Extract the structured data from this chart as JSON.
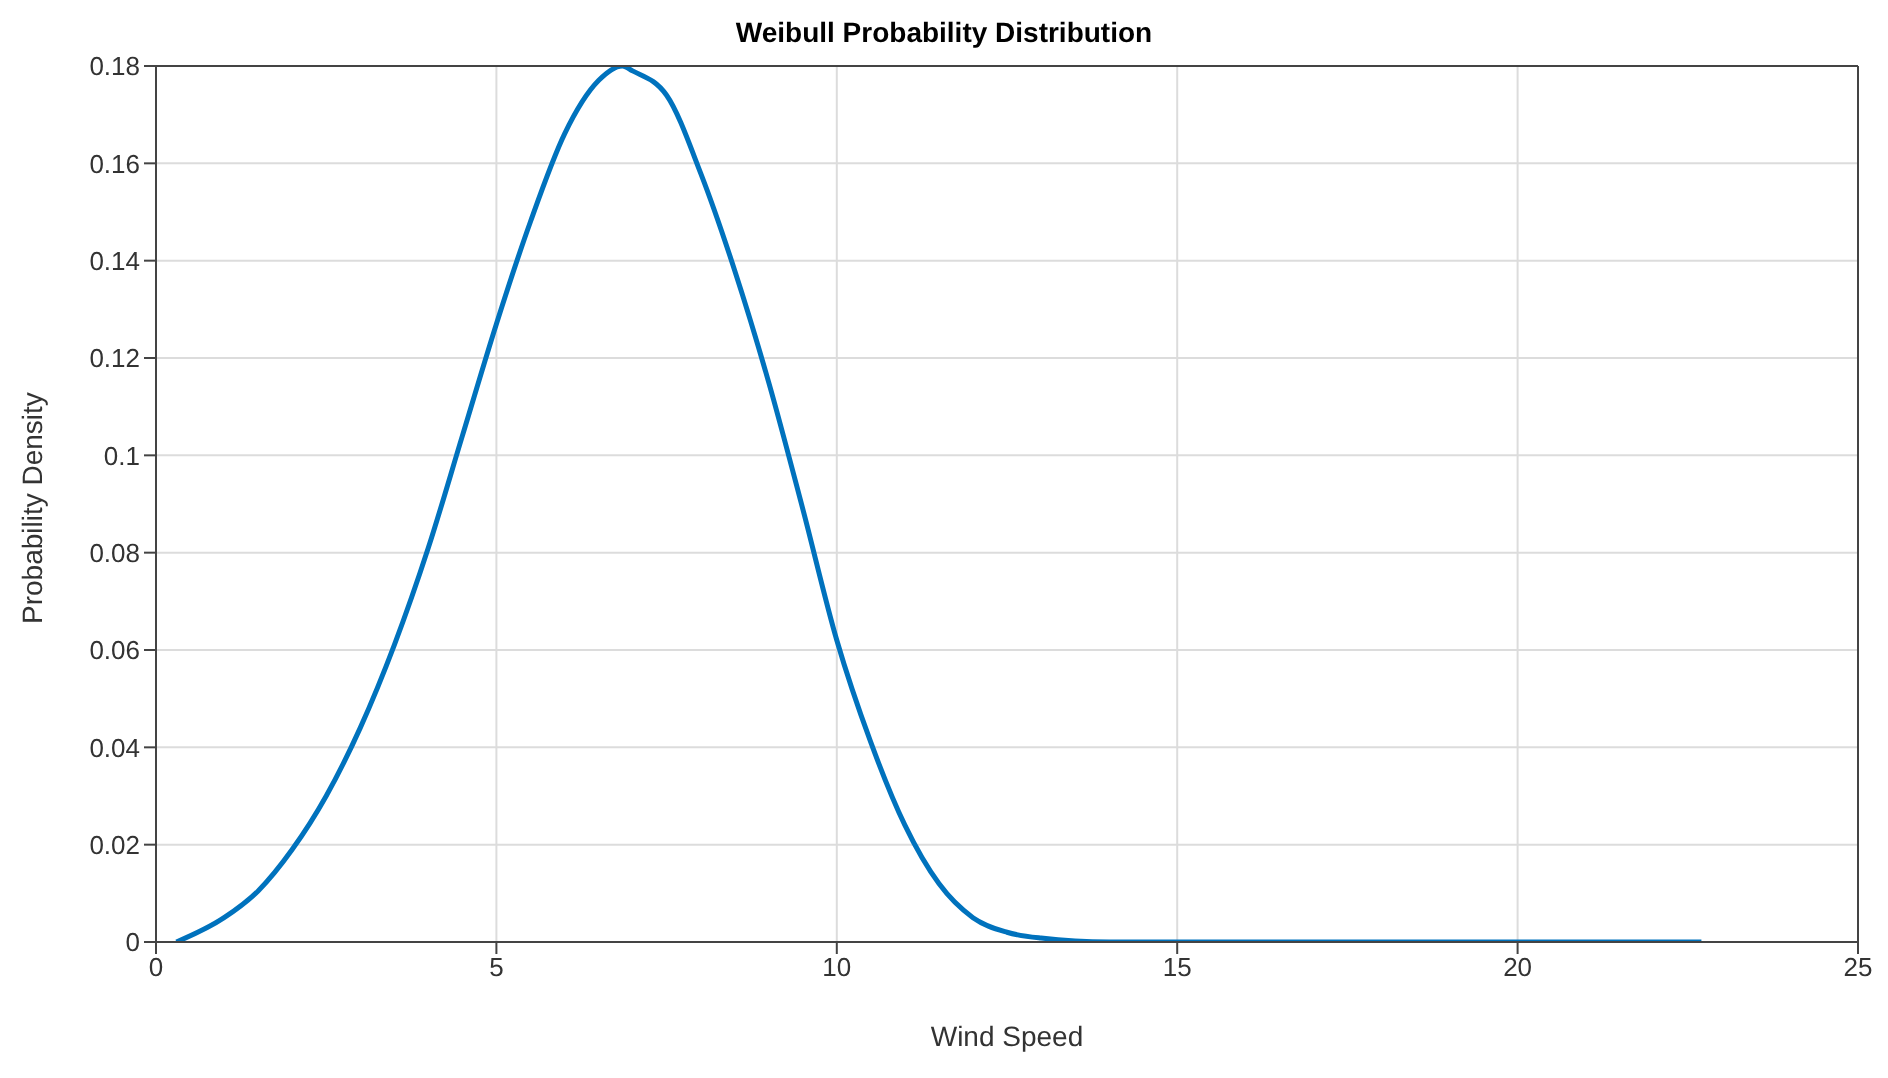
{
  "chart_data": {
    "type": "line",
    "title": "Weibull Probability Distribution",
    "xlabel": "Wind Speed",
    "ylabel": "Probability Density",
    "x": [
      0.3,
      1,
      1.5,
      2,
      2.5,
      3,
      3.5,
      4,
      4.5,
      5,
      5.5,
      6,
      6.5,
      6.85,
      7,
      7.5,
      8,
      8.5,
      9,
      9.5,
      10,
      10.5,
      11,
      11.5,
      12,
      12.5,
      13,
      14,
      15,
      18,
      22.7
    ],
    "series": [
      {
        "color": "#0072bd",
        "values": [
          0,
          0.005,
          0.0105,
          0.019,
          0.03,
          0.044,
          0.061,
          0.081,
          0.104,
          0.127,
          0.148,
          0.166,
          0.177,
          0.18,
          0.179,
          0.174,
          0.158,
          0.138,
          0.115,
          0.089,
          0.062,
          0.041,
          0.024,
          0.012,
          0.005,
          0.002,
          0.0008,
          0,
          0,
          0,
          0
        ]
      }
    ],
    "xlim": [
      0,
      25
    ],
    "xticks": [
      0,
      5,
      10,
      15,
      20,
      25
    ],
    "ylim": [
      0,
      0.18
    ],
    "yticks": [
      0,
      0.02,
      0.04,
      0.06,
      0.08,
      0.1,
      0.12,
      0.14,
      0.16,
      0.18
    ],
    "grid": true,
    "marker": "none",
    "line_style": "solid"
  }
}
